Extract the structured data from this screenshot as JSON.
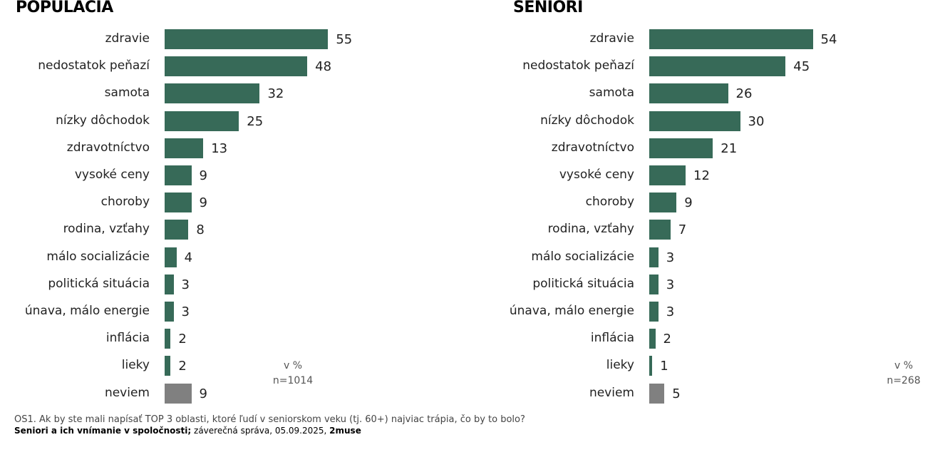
{
  "chart_data": [
    {
      "type": "bar",
      "orientation": "horizontal",
      "title": "POPULÁCIA",
      "categories": [
        "zdravie",
        "nedostatok peňazí",
        "samota",
        "nízky dôchodok",
        "zdravotníctvo",
        "vysoké ceny",
        "choroby",
        "rodina, vzťahy",
        "málo socializácie",
        "politická situácia",
        "únava, málo energie",
        "inflácia",
        "lieky",
        "neviem"
      ],
      "values": [
        55,
        48,
        32,
        25,
        13,
        9,
        9,
        8,
        4,
        3,
        3,
        2,
        2,
        9
      ],
      "unit_note": "v %",
      "sample_note": "n=1014"
    },
    {
      "type": "bar",
      "orientation": "horizontal",
      "title": "SENIORI",
      "categories": [
        "zdravie",
        "nedostatok peňazí",
        "samota",
        "nízky dôchodok",
        "zdravotníctvo",
        "vysoké ceny",
        "choroby",
        "rodina, vzťahy",
        "málo socializácie",
        "politická situácia",
        "únava, málo energie",
        "inflácia",
        "lieky",
        "neviem"
      ],
      "values": [
        54,
        45,
        26,
        30,
        21,
        12,
        9,
        7,
        3,
        3,
        3,
        2,
        1,
        5
      ],
      "unit_note": "v %",
      "sample_note": "n=268"
    }
  ],
  "colors": {
    "bar": "#376a58",
    "neviem_bar": "#808080"
  },
  "footer": {
    "question": "OS1. Ak by ste mali napísať TOP 3 oblasti, ktoré ľudí v seniorskom veku (tj. 60+) najviac trápia, čo by to bolo?",
    "report_title": "Seniori a ich vnímanie v spoločnosti;",
    "report_desc": " záverečná správa, 05.09.2025, ",
    "brand": "2muse"
  }
}
